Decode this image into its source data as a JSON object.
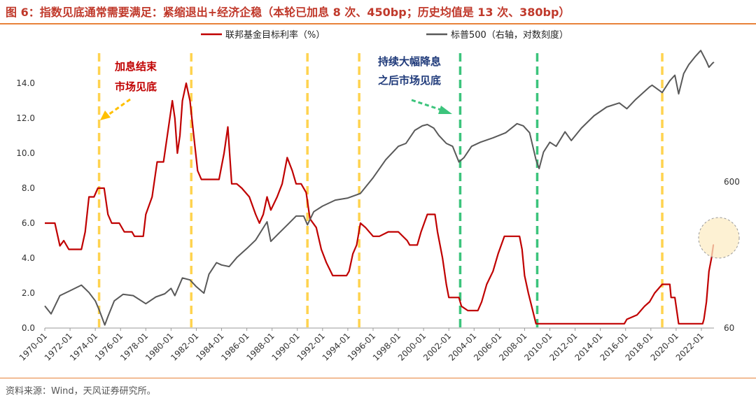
{
  "title": "图 6：指数见底通常需要满足：紧缩退出+经济企稳（本轮已加息 8 次、450bp；历史均值是 13 次、380bp）",
  "source": "资料来源：Wind，天风证券研究所。",
  "colors": {
    "fed": "#c00000",
    "spx": "#595959",
    "yellow": "#ffd34f",
    "green": "#3cc47c",
    "accent": "#e8823a"
  },
  "chart_data": {
    "type": "line",
    "legend_position": "top",
    "x_tick_labels": [
      "1970-01",
      "1972-01",
      "1974-01",
      "1976-01",
      "1978-01",
      "1980-01",
      "1982-01",
      "1984-01",
      "1986-01",
      "1988-01",
      "1990-01",
      "1992-01",
      "1994-01",
      "1996-01",
      "1998-01",
      "2000-01",
      "2002-01",
      "2004-01",
      "2006-01",
      "2008-01",
      "2010-01",
      "2012-01",
      "2014-01",
      "2016-01",
      "2018-01",
      "2020-01",
      "2022-01"
    ],
    "xlim": [
      1970.0,
      2023.0
    ],
    "y_left": {
      "ylim": [
        0,
        15
      ],
      "ticks": [
        "0.0",
        "2.0",
        "4.0",
        "6.0",
        "8.0",
        "10.0",
        "12.0",
        "14.0"
      ]
    },
    "y_right": {
      "scale": "log",
      "ticks": [
        "60",
        "600"
      ]
    },
    "series": [
      {
        "name": "联邦基金目标利率（%）",
        "axis": "left",
        "points": [
          [
            1970.0,
            6.0
          ],
          [
            1970.8,
            6.0
          ],
          [
            1971.2,
            4.7
          ],
          [
            1971.5,
            5.0
          ],
          [
            1971.9,
            4.5
          ],
          [
            1972.9,
            4.5
          ],
          [
            1973.2,
            5.5
          ],
          [
            1973.5,
            7.5
          ],
          [
            1973.9,
            7.5
          ],
          [
            1974.2,
            8.0
          ],
          [
            1974.7,
            8.0
          ],
          [
            1975.0,
            6.5
          ],
          [
            1975.3,
            6.0
          ],
          [
            1975.9,
            6.0
          ],
          [
            1976.3,
            5.5
          ],
          [
            1976.9,
            5.5
          ],
          [
            1977.1,
            5.25
          ],
          [
            1977.8,
            5.25
          ],
          [
            1978.0,
            6.5
          ],
          [
            1978.5,
            7.5
          ],
          [
            1978.9,
            9.5
          ],
          [
            1979.4,
            9.5
          ],
          [
            1979.8,
            11.5
          ],
          [
            1980.1,
            13.0
          ],
          [
            1980.3,
            12.0
          ],
          [
            1980.5,
            10.0
          ],
          [
            1980.7,
            11.0
          ],
          [
            1980.9,
            13.0
          ],
          [
            1981.2,
            14.0
          ],
          [
            1981.5,
            13.0
          ],
          [
            1981.8,
            11.0
          ],
          [
            1982.1,
            9.0
          ],
          [
            1982.4,
            8.5
          ],
          [
            1982.8,
            8.5
          ],
          [
            1983.1,
            8.5
          ],
          [
            1983.8,
            8.5
          ],
          [
            1984.2,
            10.0
          ],
          [
            1984.5,
            11.5
          ],
          [
            1984.8,
            8.25
          ],
          [
            1985.2,
            8.25
          ],
          [
            1985.6,
            8.0
          ],
          [
            1986.2,
            7.5
          ],
          [
            1986.7,
            6.5
          ],
          [
            1987.0,
            6.0
          ],
          [
            1987.3,
            6.5
          ],
          [
            1987.6,
            7.5
          ],
          [
            1987.9,
            6.75
          ],
          [
            1988.4,
            7.5
          ],
          [
            1988.8,
            8.25
          ],
          [
            1989.2,
            9.75
          ],
          [
            1989.6,
            9.0
          ],
          [
            1989.9,
            8.25
          ],
          [
            1990.3,
            8.25
          ],
          [
            1990.7,
            7.75
          ],
          [
            1991.0,
            6.25
          ],
          [
            1991.5,
            5.75
          ],
          [
            1991.9,
            4.5
          ],
          [
            1992.3,
            3.75
          ],
          [
            1992.8,
            3.0
          ],
          [
            1993.5,
            3.0
          ],
          [
            1993.9,
            3.0
          ],
          [
            1994.1,
            3.25
          ],
          [
            1994.4,
            4.25
          ],
          [
            1994.7,
            4.75
          ],
          [
            1995.0,
            6.0
          ],
          [
            1995.4,
            5.75
          ],
          [
            1996.0,
            5.25
          ],
          [
            1996.5,
            5.25
          ],
          [
            1997.2,
            5.5
          ],
          [
            1998.0,
            5.5
          ],
          [
            1998.7,
            5.0
          ],
          [
            1998.9,
            4.75
          ],
          [
            1999.5,
            4.75
          ],
          [
            1999.8,
            5.5
          ],
          [
            2000.3,
            6.5
          ],
          [
            2000.9,
            6.5
          ],
          [
            2001.1,
            5.5
          ],
          [
            2001.5,
            4.0
          ],
          [
            2001.8,
            2.5
          ],
          [
            2002.0,
            1.75
          ],
          [
            2002.8,
            1.75
          ],
          [
            2003.0,
            1.25
          ],
          [
            2003.5,
            1.0
          ],
          [
            2004.3,
            1.0
          ],
          [
            2004.6,
            1.5
          ],
          [
            2005.0,
            2.5
          ],
          [
            2005.5,
            3.25
          ],
          [
            2005.9,
            4.25
          ],
          [
            2006.4,
            5.25
          ],
          [
            2007.6,
            5.25
          ],
          [
            2007.8,
            4.5
          ],
          [
            2008.0,
            3.0
          ],
          [
            2008.3,
            2.0
          ],
          [
            2008.9,
            0.25
          ],
          [
            2015.9,
            0.25
          ],
          [
            2016.1,
            0.5
          ],
          [
            2016.9,
            0.75
          ],
          [
            2017.5,
            1.25
          ],
          [
            2017.9,
            1.5
          ],
          [
            2018.3,
            2.0
          ],
          [
            2018.9,
            2.5
          ],
          [
            2019.5,
            2.5
          ],
          [
            2019.6,
            1.75
          ],
          [
            2019.9,
            1.75
          ],
          [
            2020.2,
            0.25
          ],
          [
            2022.1,
            0.25
          ],
          [
            2022.2,
            0.5
          ],
          [
            2022.4,
            1.5
          ],
          [
            2022.6,
            3.25
          ],
          [
            2022.8,
            4.0
          ],
          [
            2022.95,
            4.75
          ],
          [
            2023.0,
            4.75
          ]
        ]
      },
      {
        "name": "标普500（右轴，对数刻度）",
        "axis": "right",
        "points": [
          [
            1970.0,
            85
          ],
          [
            1970.5,
            75
          ],
          [
            1971.2,
            100
          ],
          [
            1972.0,
            108
          ],
          [
            1972.9,
            118
          ],
          [
            1973.5,
            105
          ],
          [
            1974.0,
            92
          ],
          [
            1974.3,
            80
          ],
          [
            1974.75,
            63
          ],
          [
            1975.0,
            72
          ],
          [
            1975.5,
            92
          ],
          [
            1976.2,
            102
          ],
          [
            1977.0,
            100
          ],
          [
            1978.0,
            88
          ],
          [
            1978.8,
            98
          ],
          [
            1979.5,
            103
          ],
          [
            1980.0,
            112
          ],
          [
            1980.3,
            100
          ],
          [
            1980.9,
            132
          ],
          [
            1981.5,
            128
          ],
          [
            1982.0,
            115
          ],
          [
            1982.6,
            104
          ],
          [
            1983.0,
            140
          ],
          [
            1983.6,
            168
          ],
          [
            1984.0,
            162
          ],
          [
            1984.6,
            158
          ],
          [
            1985.2,
            182
          ],
          [
            1986.0,
            210
          ],
          [
            1986.7,
            240
          ],
          [
            1987.6,
            320
          ],
          [
            1987.9,
            235
          ],
          [
            1988.5,
            265
          ],
          [
            1989.3,
            310
          ],
          [
            1989.9,
            350
          ],
          [
            1990.5,
            350
          ],
          [
            1990.8,
            305
          ],
          [
            1991.3,
            375
          ],
          [
            1992.0,
            410
          ],
          [
            1993.0,
            450
          ],
          [
            1994.0,
            465
          ],
          [
            1995.0,
            500
          ],
          [
            1996.0,
            640
          ],
          [
            1997.0,
            850
          ],
          [
            1998.0,
            1050
          ],
          [
            1998.6,
            1100
          ],
          [
            1999.3,
            1350
          ],
          [
            1999.9,
            1450
          ],
          [
            2000.3,
            1480
          ],
          [
            2000.8,
            1400
          ],
          [
            2001.2,
            1250
          ],
          [
            2001.8,
            1100
          ],
          [
            2002.3,
            1050
          ],
          [
            2002.8,
            820
          ],
          [
            2003.2,
            880
          ],
          [
            2003.8,
            1050
          ],
          [
            2004.5,
            1120
          ],
          [
            2005.5,
            1200
          ],
          [
            2006.5,
            1300
          ],
          [
            2007.4,
            1500
          ],
          [
            2007.9,
            1450
          ],
          [
            2008.4,
            1300
          ],
          [
            2008.9,
            850
          ],
          [
            2009.15,
            740
          ],
          [
            2009.5,
            960
          ],
          [
            2010.0,
            1120
          ],
          [
            2010.5,
            1050
          ],
          [
            2011.2,
            1320
          ],
          [
            2011.7,
            1150
          ],
          [
            2012.5,
            1400
          ],
          [
            2013.5,
            1700
          ],
          [
            2014.5,
            1950
          ],
          [
            2015.5,
            2080
          ],
          [
            2016.1,
            1900
          ],
          [
            2016.8,
            2200
          ],
          [
            2017.9,
            2680
          ],
          [
            2018.1,
            2750
          ],
          [
            2018.9,
            2450
          ],
          [
            2019.5,
            2950
          ],
          [
            2019.9,
            3220
          ],
          [
            2020.2,
            2400
          ],
          [
            2020.6,
            3300
          ],
          [
            2021.0,
            3800
          ],
          [
            2021.5,
            4300
          ],
          [
            2021.95,
            4750
          ],
          [
            2022.4,
            4000
          ],
          [
            2022.6,
            3650
          ],
          [
            2022.9,
            3900
          ],
          [
            2023.0,
            3950
          ]
        ]
      }
    ],
    "vertical_markers": [
      {
        "x": 1974.3,
        "color": "yellow"
      },
      {
        "x": 1981.6,
        "color": "yellow"
      },
      {
        "x": 1990.8,
        "color": "yellow"
      },
      {
        "x": 1994.9,
        "color": "yellow"
      },
      {
        "x": 2002.9,
        "color": "green"
      },
      {
        "x": 2009.0,
        "color": "green"
      },
      {
        "x": 2018.9,
        "color": "yellow"
      }
    ],
    "annotations": [
      {
        "lines": [
          "加息结束",
          "市场见底"
        ],
        "color": "red"
      },
      {
        "lines": [
          "持续大幅降息",
          "之后市场见底"
        ],
        "color": "blue"
      }
    ]
  }
}
